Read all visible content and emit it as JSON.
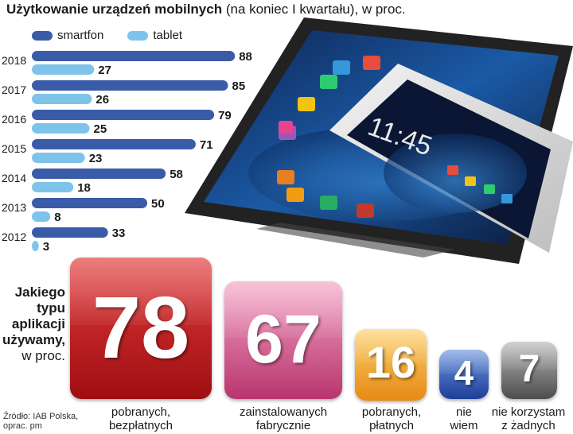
{
  "title": {
    "bold": "Użytkowanie urządzeń mobilnych",
    "normal": " (na koniec I kwartału), w proc."
  },
  "chart_data": [
    {
      "type": "bar",
      "orientation": "horizontal",
      "categories": [
        "2018",
        "2017",
        "2016",
        "2015",
        "2014",
        "2013",
        "2012"
      ],
      "series": [
        {
          "name": "smartfon",
          "values": [
            88,
            85,
            79,
            71,
            58,
            50,
            33
          ]
        },
        {
          "name": "tablet",
          "values": [
            27,
            26,
            25,
            23,
            18,
            8,
            3
          ]
        }
      ],
      "colors": {
        "smartfon": "#3a5ca8",
        "tablet": "#7ec4ea"
      },
      "xlim": [
        0,
        100
      ],
      "legend": "top"
    },
    {
      "type": "bar",
      "title": "Jakiego typu aplikacji używamy, w proc.",
      "categories": [
        "pobranych, bezpłatnych",
        "zainstalowanych fabrycznie",
        "pobranych, płatnych",
        "nie wiem",
        "nie korzystam z żadnych"
      ],
      "values": [
        78,
        67,
        16,
        4,
        7
      ]
    }
  ],
  "question": {
    "line1": "Jakiego",
    "line2": "typu",
    "line3": "aplikacji",
    "line4": "używamy,",
    "sub": "w proc."
  },
  "tiles": [
    {
      "value": "78",
      "caption1": "pobranych,",
      "caption2": "bezpłatnych",
      "color_top": "#e23a3a",
      "color_bottom": "#9e0e12"
    },
    {
      "value": "67",
      "caption1": "zainstalowanych",
      "caption2": "fabrycznie",
      "color_top": "#f4a3c4",
      "color_bottom": "#b8356f"
    },
    {
      "value": "16",
      "caption1": "pobranych,",
      "caption2": "płatnych",
      "color_top": "#fbd06b",
      "color_bottom": "#e68a14"
    },
    {
      "value": "4",
      "caption1": "nie",
      "caption2": "wiem",
      "color_top": "#6f97e0",
      "color_bottom": "#1d3f98"
    },
    {
      "value": "7",
      "caption1": "nie korzystam",
      "caption2": "z żadnych",
      "color_top": "#b7b7b7",
      "color_bottom": "#4d4d4d"
    }
  ],
  "source": {
    "line1": "Źródło: IAB Polska,",
    "line2": "oprac. pm"
  }
}
